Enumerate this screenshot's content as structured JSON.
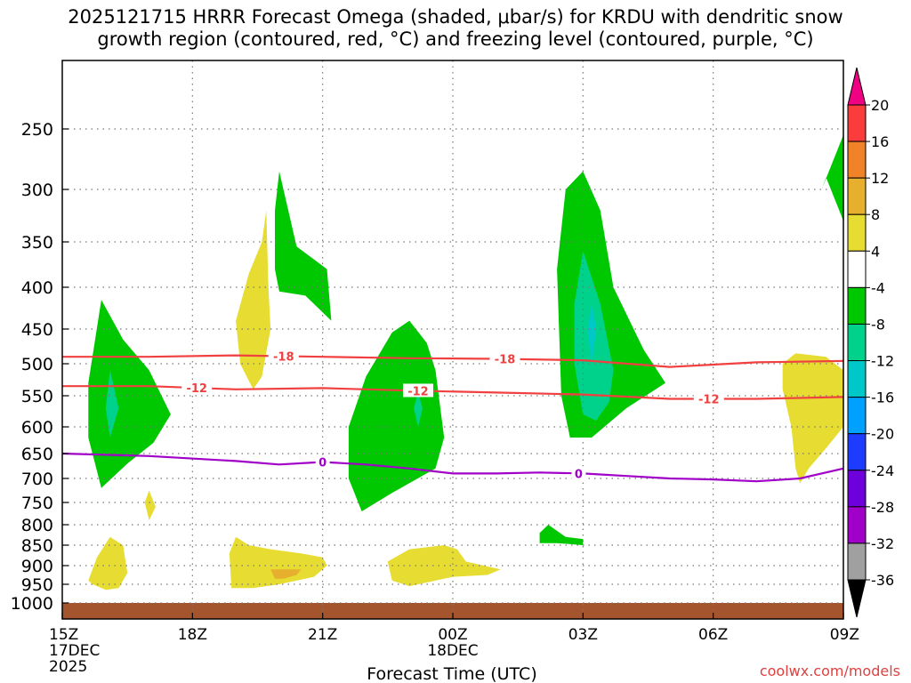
{
  "chart_data": {
    "type": "contour",
    "title_line1": "2025121715 HRRR Forecast Omega (shaded, μbar/s) for KRDU with dendritic snow",
    "title_line2": "growth region (contoured, red, °C) and freezing level (contoured, purple, °C)",
    "xlabel": "Forecast Time (UTC)",
    "x_ticks": [
      {
        "hour": 0,
        "label": "15Z",
        "sub1": "17DEC",
        "sub2": "2025"
      },
      {
        "hour": 3,
        "label": "18Z"
      },
      {
        "hour": 6,
        "label": "21Z"
      },
      {
        "hour": 9,
        "label": "00Z",
        "sub1": "18DEC"
      },
      {
        "hour": 12,
        "label": "03Z"
      },
      {
        "hour": 15,
        "label": "06Z"
      },
      {
        "hour": 18,
        "label": "09Z"
      }
    ],
    "y_ticks": [
      250,
      300,
      350,
      400,
      450,
      500,
      550,
      600,
      650,
      700,
      750,
      800,
      850,
      900,
      950,
      1000
    ],
    "colorbar": {
      "colors": [
        "#ffffff",
        "#a0a0a0",
        "#a000c8",
        "#6e00dc",
        "#1e3cff",
        "#00a0ff",
        "#00c8c8",
        "#00d28c",
        "#00c800",
        "#ffffff",
        "#e6dc32",
        "#e6af2d",
        "#f08228",
        "#fa3c3c",
        "#f00082"
      ],
      "labels": [
        "-36",
        "-32",
        "-28",
        "-24",
        "-20",
        "-16",
        "-12",
        "-8",
        "-4",
        "4",
        "8",
        "12",
        "16",
        "20"
      ]
    },
    "omega_regions": [
      {
        "level": "-8",
        "color": "#00c800",
        "points": [
          [
            0.6,
            530
          ],
          [
            0.9,
            415
          ],
          [
            1.4,
            465
          ],
          [
            2.0,
            510
          ],
          [
            2.5,
            580
          ],
          [
            2.1,
            630
          ],
          [
            1.5,
            670
          ],
          [
            0.9,
            720
          ],
          [
            0.6,
            620
          ]
        ]
      },
      {
        "level": "-12",
        "color": "#00d28c",
        "points": [
          [
            1.0,
            570
          ],
          [
            1.1,
            510
          ],
          [
            1.3,
            570
          ],
          [
            1.1,
            620
          ]
        ]
      },
      {
        "level": "-8",
        "color": "#00c800",
        "points": [
          [
            4.9,
            320
          ],
          [
            5.0,
            285
          ],
          [
            5.4,
            355
          ],
          [
            6.1,
            380
          ],
          [
            6.2,
            440
          ],
          [
            5.6,
            410
          ],
          [
            5.0,
            405
          ],
          [
            4.9,
            380
          ]
        ]
      },
      {
        "level": "-8",
        "color": "#00c800",
        "points": [
          [
            6.6,
            600
          ],
          [
            7.0,
            520
          ],
          [
            7.6,
            455
          ],
          [
            8.0,
            440
          ],
          [
            8.4,
            470
          ],
          [
            8.6,
            510
          ],
          [
            8.8,
            620
          ],
          [
            8.6,
            680
          ],
          [
            7.6,
            730
          ],
          [
            6.9,
            770
          ],
          [
            6.6,
            700
          ]
        ]
      },
      {
        "level": "-12",
        "color": "#00d28c",
        "points": [
          [
            8.1,
            570
          ],
          [
            8.2,
            545
          ],
          [
            8.3,
            570
          ],
          [
            8.2,
            600
          ]
        ]
      },
      {
        "level": "-8",
        "color": "#00c800",
        "points": [
          [
            11.4,
            380
          ],
          [
            11.6,
            300
          ],
          [
            12.0,
            285
          ],
          [
            12.4,
            320
          ],
          [
            12.7,
            400
          ],
          [
            13.4,
            480
          ],
          [
            13.9,
            530
          ],
          [
            13.0,
            570
          ],
          [
            12.2,
            620
          ],
          [
            11.7,
            620
          ],
          [
            11.5,
            550
          ]
        ]
      },
      {
        "level": "-12",
        "color": "#00d28c",
        "points": [
          [
            11.8,
            420
          ],
          [
            12.0,
            360
          ],
          [
            12.4,
            420
          ],
          [
            12.7,
            510
          ],
          [
            12.6,
            560
          ],
          [
            12.3,
            590
          ],
          [
            12.0,
            580
          ],
          [
            11.8,
            500
          ]
        ]
      },
      {
        "level": "-16",
        "color": "#00c8c8",
        "points": [
          [
            12.1,
            450
          ],
          [
            12.2,
            420
          ],
          [
            12.3,
            450
          ],
          [
            12.2,
            500
          ]
        ]
      },
      {
        "level": "-8",
        "color": "#00c800",
        "points": [
          [
            11.0,
            820
          ],
          [
            11.2,
            800
          ],
          [
            11.6,
            830
          ],
          [
            12.0,
            835
          ],
          [
            12.0,
            850
          ],
          [
            11.4,
            845
          ],
          [
            11.0,
            845
          ]
        ]
      },
      {
        "level": "-8",
        "color": "#00c800",
        "points": [
          [
            17.5,
            300
          ],
          [
            18.0,
            255
          ],
          [
            18.0,
            330
          ],
          [
            17.6,
            290
          ]
        ]
      },
      {
        "level": "4",
        "color": "#e6dc32",
        "points": [
          [
            4.0,
            440
          ],
          [
            4.3,
            385
          ],
          [
            4.6,
            350
          ],
          [
            4.7,
            320
          ],
          [
            4.75,
            400
          ],
          [
            4.8,
            450
          ],
          [
            4.6,
            520
          ],
          [
            4.4,
            540
          ],
          [
            4.1,
            500
          ]
        ]
      },
      {
        "level": "4",
        "color": "#e6dc32",
        "points": [
          [
            1.9,
            750
          ],
          [
            2.0,
            725
          ],
          [
            2.15,
            760
          ],
          [
            2.0,
            790
          ]
        ]
      },
      {
        "level": "4",
        "color": "#e6dc32",
        "points": [
          [
            0.6,
            940
          ],
          [
            0.8,
            880
          ],
          [
            1.1,
            830
          ],
          [
            1.4,
            850
          ],
          [
            1.5,
            920
          ],
          [
            1.3,
            960
          ],
          [
            1.0,
            965
          ],
          [
            0.7,
            950
          ]
        ]
      },
      {
        "level": "4",
        "color": "#e6dc32",
        "points": [
          [
            3.85,
            870
          ],
          [
            4.0,
            830
          ],
          [
            4.3,
            850
          ],
          [
            4.8,
            860
          ],
          [
            5.5,
            870
          ],
          [
            6.0,
            880
          ],
          [
            6.1,
            900
          ],
          [
            5.8,
            930
          ],
          [
            5.0,
            950
          ],
          [
            4.4,
            960
          ],
          [
            3.9,
            960
          ]
        ]
      },
      {
        "level": "8",
        "color": "#e6af2d",
        "points": [
          [
            4.8,
            910
          ],
          [
            5.2,
            910
          ],
          [
            5.5,
            910
          ],
          [
            5.4,
            925
          ],
          [
            5.1,
            935
          ],
          [
            4.9,
            935
          ]
        ]
      },
      {
        "level": "4",
        "color": "#e6dc32",
        "points": [
          [
            7.5,
            890
          ],
          [
            8.0,
            860
          ],
          [
            8.8,
            850
          ],
          [
            9.1,
            860
          ],
          [
            9.3,
            890
          ],
          [
            10.1,
            910
          ],
          [
            9.8,
            925
          ],
          [
            9.0,
            930
          ],
          [
            8.0,
            955
          ],
          [
            7.6,
            940
          ]
        ]
      },
      {
        "level": "4",
        "color": "#e6dc32",
        "points": [
          [
            16.6,
            500
          ],
          [
            16.9,
            485
          ],
          [
            17.6,
            490
          ],
          [
            18.0,
            510
          ],
          [
            18.0,
            600
          ],
          [
            17.6,
            640
          ],
          [
            17.2,
            680
          ],
          [
            17.0,
            710
          ],
          [
            16.9,
            680
          ],
          [
            16.8,
            600
          ],
          [
            16.6,
            540
          ]
        ]
      }
    ],
    "dgz_lines": [
      {
        "label": "-18",
        "label_hour": 5.2,
        "values": [
          [
            0,
            490
          ],
          [
            2,
            490
          ],
          [
            4,
            488
          ],
          [
            6,
            490
          ],
          [
            8,
            492
          ],
          [
            10,
            493
          ],
          [
            12,
            495
          ],
          [
            14,
            505
          ],
          [
            16,
            498
          ],
          [
            18,
            496
          ]
        ]
      },
      {
        "label": "-12",
        "label_hour": 3.2,
        "label_hour2": 10.0,
        "label_hour3": 15.0,
        "values": [
          [
            0,
            535
          ],
          [
            2,
            535
          ],
          [
            4,
            540
          ],
          [
            6,
            538
          ],
          [
            8,
            542
          ],
          [
            10,
            545
          ],
          [
            12,
            548
          ],
          [
            14,
            555
          ],
          [
            16,
            555
          ],
          [
            18,
            552
          ]
        ]
      }
    ],
    "dgz_labels": [
      {
        "text": "-18",
        "hour": 5.1
      },
      {
        "text": "-18",
        "hour": 10.2
      },
      {
        "text": "-12",
        "hour": 3.1
      },
      {
        "text": "-12",
        "hour": 8.2
      },
      {
        "text": "-12",
        "hour": 14.9
      }
    ],
    "freezing_line": {
      "label": "0",
      "values": [
        [
          0,
          650
        ],
        [
          2,
          655
        ],
        [
          4,
          665
        ],
        [
          5,
          672
        ],
        [
          6,
          667
        ],
        [
          7,
          672
        ],
        [
          8,
          680
        ],
        [
          9,
          690
        ],
        [
          10,
          690
        ],
        [
          11,
          688
        ],
        [
          12,
          690
        ],
        [
          13,
          695
        ],
        [
          14,
          700
        ],
        [
          15,
          702
        ],
        [
          16,
          706
        ],
        [
          17,
          700
        ],
        [
          18,
          680
        ]
      ],
      "labels": [
        {
          "text": "0",
          "hour": 6.0
        },
        {
          "text": "0",
          "hour": 11.9
        }
      ]
    },
    "ground_from_hpa": 1010
  },
  "footer": {
    "xlabel": "Forecast Time (UTC)",
    "credit": "coolwx.com/models"
  }
}
